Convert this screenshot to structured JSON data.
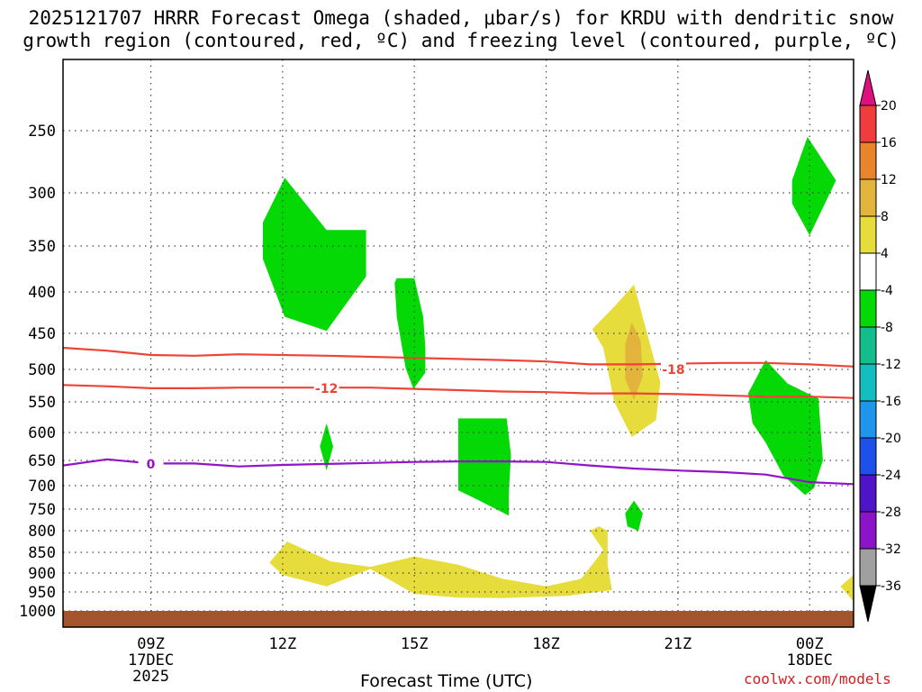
{
  "chart_data": {
    "type": "contour",
    "title_line1": "2025121707 HRRR Forecast Omega (shaded, μbar/s) for KRDU with dendritic snow",
    "title_line2": "growth region (contoured, red, ºC) and freezing level (contoured, purple, ºC)",
    "xlabel": "Forecast Time (UTC)",
    "credit": "coolwx.com/models",
    "xlim": [
      7,
      25
    ],
    "ylim": [
      200,
      1020
    ],
    "x_ticks": [
      {
        "x": 9,
        "label": "09Z",
        "sub1": "17DEC",
        "sub2": "2025"
      },
      {
        "x": 12,
        "label": "12Z",
        "sub1": "",
        "sub2": ""
      },
      {
        "x": 15,
        "label": "15Z",
        "sub1": "",
        "sub2": ""
      },
      {
        "x": 18,
        "label": "18Z",
        "sub1": "",
        "sub2": ""
      },
      {
        "x": 21,
        "label": "21Z",
        "sub1": "",
        "sub2": ""
      },
      {
        "x": 24,
        "label": "00Z",
        "sub1": "18DEC",
        "sub2": ""
      }
    ],
    "y_ticks": [
      250,
      300,
      350,
      400,
      450,
      500,
      550,
      600,
      650,
      700,
      750,
      800,
      850,
      900,
      950,
      1000
    ],
    "colorbar": {
      "labels": [
        "20",
        "16",
        "12",
        "8",
        "4",
        "-4",
        "-8",
        "-12",
        "-16",
        "-20",
        "-24",
        "-28",
        "-32",
        "-36"
      ],
      "colors": [
        "#dd1080",
        "#f03c3c",
        "#e8842c",
        "#e2b43c",
        "#e6dc3c",
        "#ffffff",
        "#05d905",
        "#14be8c",
        "#14bebe",
        "#1e96eb",
        "#1e50eb",
        "#5014c8",
        "#8c14c8",
        "#a0a0a0",
        "#000000"
      ]
    },
    "contours": [
      {
        "name": "-18",
        "color": "#ee4438",
        "label": "-18",
        "label_at": [
          20.9,
          500
        ],
        "points": [
          [
            7,
            470
          ],
          [
            8,
            474
          ],
          [
            9,
            480
          ],
          [
            10,
            481
          ],
          [
            11,
            479
          ],
          [
            13,
            481
          ],
          [
            15,
            484
          ],
          [
            17,
            487
          ],
          [
            18,
            489
          ],
          [
            19,
            493
          ],
          [
            20,
            493
          ],
          [
            21,
            492
          ],
          [
            22,
            491
          ],
          [
            23,
            491
          ],
          [
            24,
            493
          ],
          [
            25,
            496
          ]
        ]
      },
      {
        "name": "-12",
        "color": "#ee4438",
        "label": "-12",
        "label_at": [
          13.0,
          529
        ],
        "points": [
          [
            7,
            524
          ],
          [
            8,
            526
          ],
          [
            9,
            529
          ],
          [
            10,
            529
          ],
          [
            11,
            528
          ],
          [
            12,
            528
          ],
          [
            13,
            528
          ],
          [
            14,
            528
          ],
          [
            15,
            530
          ],
          [
            16,
            532
          ],
          [
            17,
            534
          ],
          [
            18,
            535
          ],
          [
            19,
            537
          ],
          [
            20,
            537
          ],
          [
            21,
            538
          ],
          [
            22,
            540
          ],
          [
            23,
            542
          ],
          [
            24,
            542
          ],
          [
            25,
            544
          ]
        ]
      },
      {
        "name": "0",
        "color": "#9214c8",
        "label": "0",
        "label_at": [
          9.0,
          657
        ],
        "points": [
          [
            7,
            660
          ],
          [
            8,
            648
          ],
          [
            9,
            656
          ],
          [
            10,
            656
          ],
          [
            11,
            662
          ],
          [
            12,
            659
          ],
          [
            13,
            657
          ],
          [
            14,
            655
          ],
          [
            15,
            653
          ],
          [
            16,
            652
          ],
          [
            17,
            652
          ],
          [
            18,
            653
          ],
          [
            19,
            660
          ],
          [
            20,
            666
          ],
          [
            21,
            670
          ],
          [
            22,
            673
          ],
          [
            23,
            678
          ],
          [
            24,
            693
          ],
          [
            25,
            697
          ]
        ]
      }
    ],
    "shaded_regions": [
      {
        "name": "A",
        "value": -4,
        "color": "#05d905",
        "points": [
          [
            11.55,
            328
          ],
          [
            12.05,
            288
          ],
          [
            13.0,
            335
          ],
          [
            13.9,
            335
          ],
          [
            13.9,
            383
          ],
          [
            13.0,
            447
          ],
          [
            12.05,
            430
          ],
          [
            11.55,
            364
          ]
        ]
      },
      {
        "name": "B",
        "value": -4,
        "color": "#05d905",
        "points": [
          [
            14.6,
            385
          ],
          [
            15.0,
            385
          ],
          [
            15.2,
            430
          ],
          [
            15.25,
            470
          ],
          [
            15.25,
            505
          ],
          [
            14.98,
            530
          ],
          [
            14.8,
            498
          ],
          [
            14.6,
            430
          ],
          [
            14.55,
            390
          ]
        ]
      },
      {
        "name": "C",
        "value": -4,
        "color": "#05d905",
        "points": [
          [
            12.85,
            625
          ],
          [
            13.0,
            585
          ],
          [
            13.15,
            625
          ],
          [
            13.0,
            670
          ]
        ]
      },
      {
        "name": "D",
        "value": -4,
        "color": "#05d905",
        "points": [
          [
            16.0,
            577
          ],
          [
            17.1,
            577
          ],
          [
            17.2,
            640
          ],
          [
            17.15,
            715
          ],
          [
            17.15,
            765
          ],
          [
            16.4,
            728
          ],
          [
            16.0,
            710
          ]
        ]
      },
      {
        "name": "E",
        "value": -4,
        "color": "#05d905",
        "points": [
          [
            22.6,
            537
          ],
          [
            23.0,
            487
          ],
          [
            23.5,
            522
          ],
          [
            24.2,
            545
          ],
          [
            24.3,
            650
          ],
          [
            24.1,
            705
          ],
          [
            23.9,
            720
          ],
          [
            23.4,
            680
          ],
          [
            23.0,
            618
          ],
          [
            22.7,
            585
          ]
        ]
      },
      {
        "name": "F",
        "value": -4,
        "color": "#05d905",
        "points": [
          [
            23.6,
            290
          ],
          [
            23.95,
            255
          ],
          [
            24.6,
            290
          ],
          [
            24.0,
            340
          ],
          [
            23.6,
            310
          ]
        ]
      },
      {
        "name": "G",
        "value": -4,
        "color": "#05d905",
        "points": [
          [
            19.8,
            760
          ],
          [
            20.0,
            732
          ],
          [
            20.2,
            760
          ],
          [
            20.1,
            800
          ],
          [
            19.85,
            790
          ]
        ]
      },
      {
        "name": "H",
        "value": 4,
        "color": "#e6dc3c",
        "points": [
          [
            19.05,
            445
          ],
          [
            19.6,
            415
          ],
          [
            20.0,
            392
          ],
          [
            20.3,
            450
          ],
          [
            20.6,
            520
          ],
          [
            20.5,
            580
          ],
          [
            19.95,
            608
          ],
          [
            19.55,
            550
          ],
          [
            19.3,
            470
          ]
        ]
      },
      {
        "name": "I",
        "value": 8,
        "color": "#e2b43c",
        "points": [
          [
            19.8,
            465
          ],
          [
            19.95,
            437
          ],
          [
            20.15,
            460
          ],
          [
            20.2,
            510
          ],
          [
            20.0,
            547
          ],
          [
            19.8,
            515
          ]
        ]
      },
      {
        "name": "J",
        "value": 4,
        "color": "#e6dc3c",
        "points": [
          [
            11.7,
            875
          ],
          [
            12.1,
            825
          ],
          [
            13.1,
            872
          ],
          [
            14.0,
            885
          ],
          [
            15.0,
            860
          ],
          [
            16.0,
            880
          ],
          [
            17.0,
            915
          ],
          [
            18.0,
            935
          ],
          [
            18.8,
            915
          ],
          [
            19.3,
            845
          ],
          [
            19.0,
            800
          ],
          [
            19.2,
            790
          ],
          [
            19.4,
            800
          ],
          [
            19.4,
            880
          ],
          [
            19.5,
            945
          ],
          [
            18.5,
            960
          ],
          [
            17.0,
            966
          ],
          [
            16.0,
            965
          ],
          [
            15.0,
            955
          ],
          [
            14.0,
            890
          ],
          [
            13.0,
            935
          ],
          [
            12.0,
            905
          ]
        ]
      },
      {
        "name": "K",
        "value": 4,
        "color": "#e6dc3c",
        "points": [
          [
            24.7,
            935
          ],
          [
            25.0,
            905
          ],
          [
            25.0,
            975
          ]
        ]
      }
    ]
  }
}
